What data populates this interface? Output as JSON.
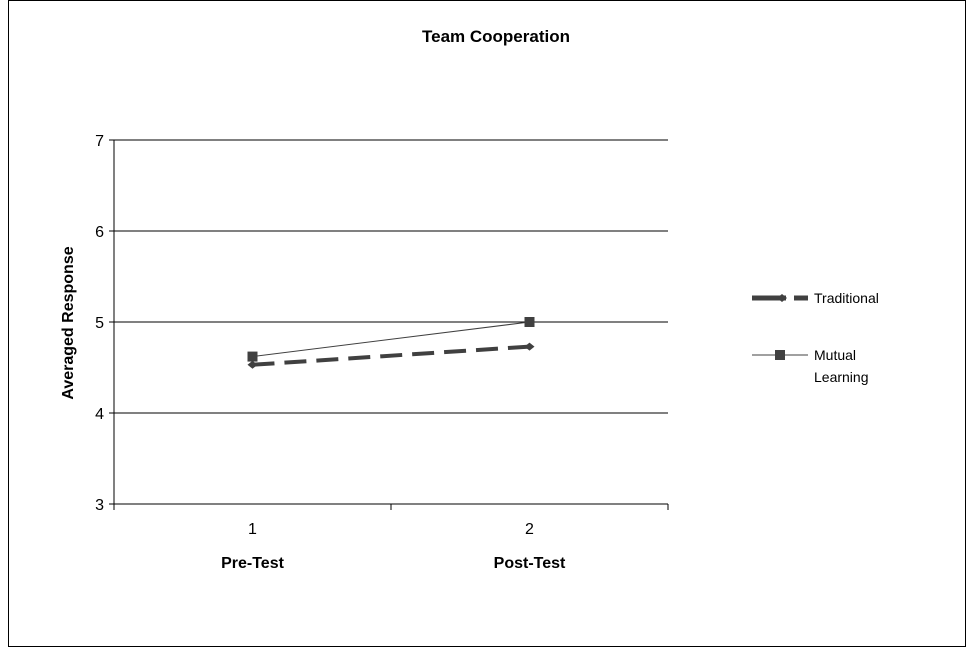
{
  "chart_data": {
    "type": "line",
    "title": "Team Cooperation",
    "ylabel": "Averaged Response",
    "categories": [
      "1",
      "2"
    ],
    "category_labels": [
      "Pre-Test",
      "Post-Test"
    ],
    "ylim": [
      3,
      7
    ],
    "yticks": [
      "3",
      "4",
      "5",
      "6",
      "7"
    ],
    "grid": true,
    "legend_position": "right",
    "series": [
      {
        "name": "Traditional",
        "values": [
          4.53,
          4.73
        ],
        "color": "#404040",
        "line_style": "dashed",
        "marker": "diamond"
      },
      {
        "name": "Mutual Learning",
        "name_lines": [
          "Mutual",
          "Learning"
        ],
        "values": [
          4.62,
          5.0
        ],
        "color": "#404040",
        "line_style": "solid",
        "marker": "square"
      }
    ]
  }
}
